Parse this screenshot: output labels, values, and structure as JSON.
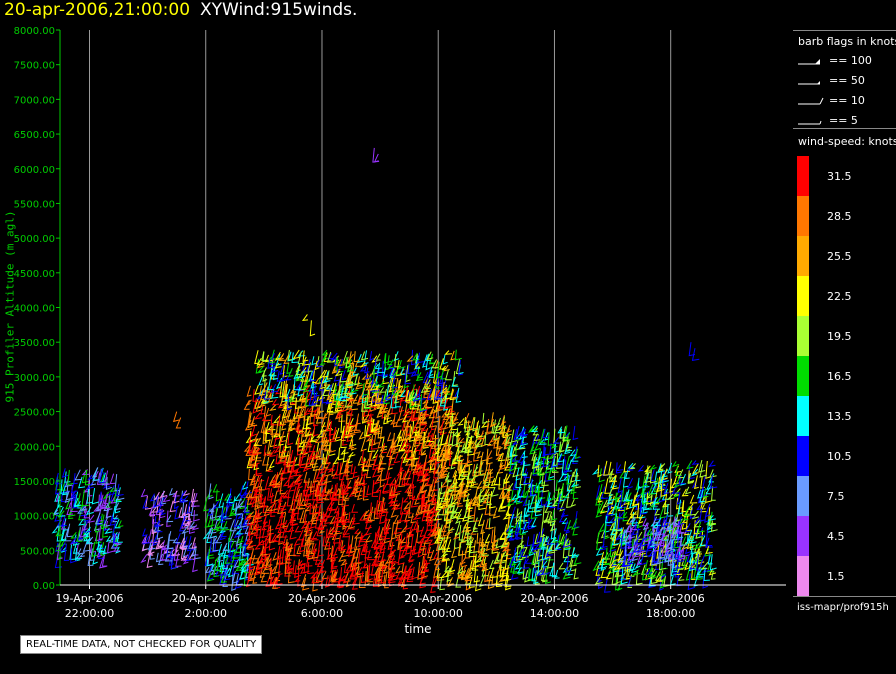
{
  "title": {
    "date": "20-apr-2006,21:00:00",
    "name": "XYWind:915winds."
  },
  "quality_note": "REAL-TIME DATA, NOT CHECKED FOR QUALITY",
  "source": "iss-mapr/prof915h",
  "legend": {
    "barb_title": "barb flags in knots",
    "barbs": [
      {
        "label": "== 100",
        "kind": "flag"
      },
      {
        "label": "== 50",
        "kind": "flag-half"
      },
      {
        "label": "== 10",
        "kind": "full"
      },
      {
        "label": "== 5",
        "kind": "half"
      }
    ],
    "speed_title": "wind-speed: knots",
    "speeds": [
      {
        "label": "31.5",
        "color": "#ff0000"
      },
      {
        "label": "28.5",
        "color": "#ff7700"
      },
      {
        "label": "25.5",
        "color": "#ffaa00"
      },
      {
        "label": "22.5",
        "color": "#ffff00"
      },
      {
        "label": "19.5",
        "color": "#aaff33"
      },
      {
        "label": "16.5",
        "color": "#00dd00"
      },
      {
        "label": "13.5",
        "color": "#00ffff"
      },
      {
        "label": "10.5",
        "color": "#0000ff"
      },
      {
        "label": "7.5",
        "color": "#6a9bff"
      },
      {
        "label": "4.5",
        "color": "#9933ff"
      },
      {
        "label": "1.5",
        "color": "#ee88ee"
      }
    ]
  },
  "chart_data": {
    "type": "scatter",
    "subtype": "wind-barb time-height plot",
    "xlabel": "time",
    "ylabel": "915 Profiler Altitude (m agl)",
    "ylim": [
      0,
      8000
    ],
    "yticks": [
      "0.00",
      "500.00",
      "1000.00",
      "1500.00",
      "2000.00",
      "2500.00",
      "3000.00",
      "3500.00",
      "4000.00",
      "4500.00",
      "5000.00",
      "5500.00",
      "6000.00",
      "6500.00",
      "7000.00",
      "7500.00",
      "8000.00"
    ],
    "xlim_hours": [
      -2.5,
      21.7
    ],
    "xticks": [
      {
        "hour": 0,
        "line1": "19-Apr-2006",
        "line2": "22:00:00"
      },
      {
        "hour": 4,
        "line1": "20-Apr-2006",
        "line2": "2:00:00"
      },
      {
        "hour": 8,
        "line1": "20-Apr-2006",
        "line2": "6:00:00"
      },
      {
        "hour": 12,
        "line1": "20-Apr-2006",
        "line2": "10:00:00"
      },
      {
        "hour": 16,
        "line1": "20-Apr-2006",
        "line2": "14:00:00"
      },
      {
        "hour": 20,
        "line1": "20-Apr-2006",
        "line2": "18:00:00"
      }
    ],
    "grid": "vertical",
    "regions": [
      {
        "h0": -1.1,
        "h1": 1.1,
        "z0": 400,
        "z1": 1700,
        "speeds": [
          10.5,
          13.5,
          7.5,
          4.5,
          16.5
        ]
      },
      {
        "h0": 1.9,
        "h1": 3.7,
        "z0": 400,
        "z1": 1400,
        "speeds": [
          4.5,
          7.5,
          10.5,
          1.5
        ]
      },
      {
        "h0": 4.0,
        "h1": 5.5,
        "z0": 100,
        "z1": 1500,
        "speeds": [
          10.5,
          13.5,
          16.5,
          7.5
        ]
      },
      {
        "h0": 5.5,
        "h1": 12.0,
        "z0": 100,
        "z1": 1800,
        "speeds": [
          31.5,
          31.5,
          28.5
        ]
      },
      {
        "h0": 5.5,
        "h1": 12.5,
        "z0": 1800,
        "z1": 2900,
        "speeds": [
          28.5,
          25.5,
          31.5,
          22.5
        ]
      },
      {
        "h0": 5.8,
        "h1": 12.8,
        "z0": 2700,
        "z1": 3400,
        "speeds": [
          19.5,
          16.5,
          13.5,
          22.5,
          25.5,
          10.5
        ]
      },
      {
        "h0": 12.0,
        "h1": 14.5,
        "z0": 100,
        "z1": 2500,
        "speeds": [
          22.5,
          25.5,
          28.5,
          19.5
        ]
      },
      {
        "h0": 14.5,
        "h1": 16.8,
        "z0": 200,
        "z1": 2300,
        "speeds": [
          16.5,
          13.5,
          19.5,
          10.5
        ]
      },
      {
        "h0": 17.5,
        "h1": 21.5,
        "z0": 100,
        "z1": 1800,
        "speeds": [
          19.5,
          16.5,
          13.5,
          22.5,
          10.5
        ]
      },
      {
        "h0": 18.2,
        "h1": 20.5,
        "z0": 400,
        "z1": 1000,
        "speeds": [
          4.5,
          7.5,
          10.5
        ]
      }
    ],
    "isolated": [
      {
        "hour": 9.8,
        "z": 6300,
        "speed": 4.5
      },
      {
        "hour": 3.0,
        "z": 2500,
        "speed": 28.5
      },
      {
        "hour": 20.7,
        "z": 3500,
        "speed": 10.5
      },
      {
        "hour": 7.5,
        "z": 3900,
        "speed": 22.5
      }
    ]
  }
}
